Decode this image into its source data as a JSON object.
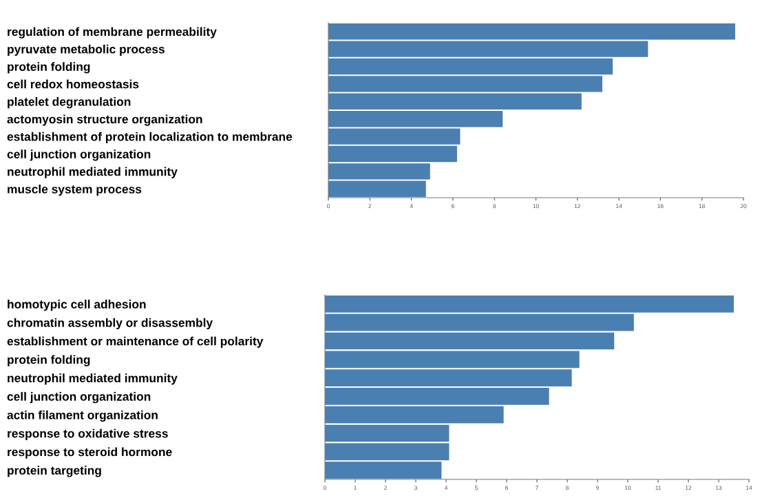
{
  "chart_data": [
    {
      "type": "bar",
      "orientation": "horizontal",
      "color": "#4a7fb1",
      "categories": [
        "regulation of membrane permeability",
        "pyruvate metabolic process",
        "protein folding",
        "cell redox homeostasis",
        "platelet degranulation",
        "actomyosin structure organization",
        "establishment of protein localization to membrane",
        "cell junction organization",
        "neutrophil mediated immunity",
        "muscle system process"
      ],
      "values": [
        19.6,
        15.4,
        13.7,
        13.2,
        12.2,
        8.4,
        6.35,
        6.2,
        4.9,
        4.7
      ],
      "xlim": [
        0,
        20
      ],
      "xticks": [
        0,
        2,
        4,
        6,
        8,
        10,
        12,
        14,
        16,
        18,
        20
      ],
      "grid": false
    },
    {
      "type": "bar",
      "orientation": "horizontal",
      "color": "#4a7fb1",
      "categories": [
        "homotypic cell adhesion",
        "chromatin assembly or disassembly",
        "establishment or maintenance of cell polarity",
        "protein folding",
        "neutrophil mediated immunity",
        "cell junction organization",
        "actin filament organization",
        "response to oxidative stress",
        "response to steroid hormone",
        "protein targeting"
      ],
      "values": [
        13.5,
        10.2,
        9.55,
        8.4,
        8.15,
        7.4,
        5.9,
        4.1,
        4.1,
        3.85
      ],
      "xlim": [
        0,
        14
      ],
      "xticks": [
        0,
        1,
        2,
        3,
        4,
        5,
        6,
        7,
        8,
        9,
        10,
        11,
        12,
        13,
        14
      ],
      "grid": false
    }
  ]
}
